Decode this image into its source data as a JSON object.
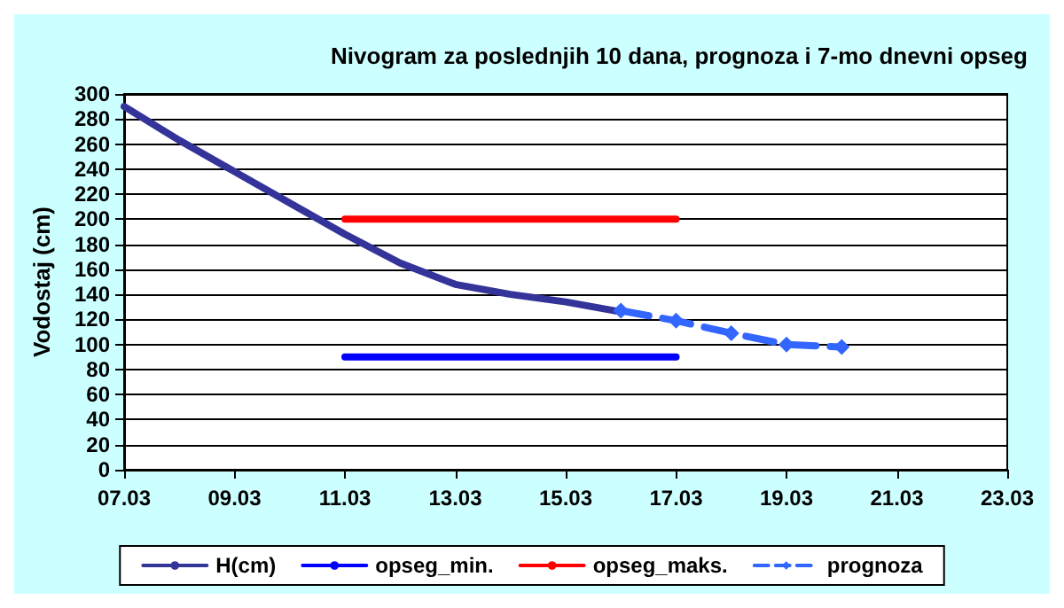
{
  "chart_data": {
    "type": "line",
    "title": "Nivogram za poslednjih 10 dana, prognoza i 7-mo dnevni opseg",
    "ylabel": "Vodostaj (cm)",
    "x": [
      "--03-07",
      "--03-08",
      "--03-09",
      "--03-10",
      "--03-11",
      "--03-12",
      "--03-13",
      "--03-14",
      "--03-15",
      "--03-16"
    ],
    "series": [
      {
        "name": "H(cm)",
        "color": "#333399",
        "values": [
          290,
          263,
          238,
          213,
          188,
          165,
          148,
          140,
          134,
          126
        ]
      },
      {
        "name": "opseg_min.",
        "color": "#0000ff",
        "x": [
          "--03-11",
          "--03-17"
        ],
        "values": [
          90,
          90
        ]
      },
      {
        "name": "opseg_maks.",
        "color": "#ff0000",
        "x": [
          "--03-11",
          "--03-17"
        ],
        "values": [
          200,
          200
        ]
      },
      {
        "name": "prognoza",
        "color": "#3366ff",
        "x": [
          "--03-16",
          "--03-17",
          "--03-18",
          "--03-19",
          "--03-20"
        ],
        "values": [
          127,
          119,
          109,
          100,
          98
        ],
        "marker": "diamond",
        "line_style": "dashed"
      }
    ],
    "xlim": [
      "--03-07",
      "--03-23"
    ],
    "xticks": [
      {
        "value": "--03-07",
        "label": "07.03"
      },
      {
        "value": "--03-09",
        "label": "09.03"
      },
      {
        "value": "--03-11",
        "label": "11.03"
      },
      {
        "value": "--03-13",
        "label": "13.03"
      },
      {
        "value": "--03-15",
        "label": "15.03"
      },
      {
        "value": "--03-17",
        "label": "17.03"
      },
      {
        "value": "--03-19",
        "label": "19.03"
      },
      {
        "value": "--03-21",
        "label": "21.03"
      },
      {
        "value": "--03-23",
        "label": "23.03"
      }
    ],
    "ylim": [
      0,
      300
    ],
    "yticks": [
      0,
      20,
      40,
      60,
      80,
      100,
      120,
      140,
      160,
      180,
      200,
      220,
      240,
      260,
      280,
      300
    ],
    "grid": "y",
    "legend": "bottom",
    "marker": "none",
    "line_style": "solid"
  }
}
